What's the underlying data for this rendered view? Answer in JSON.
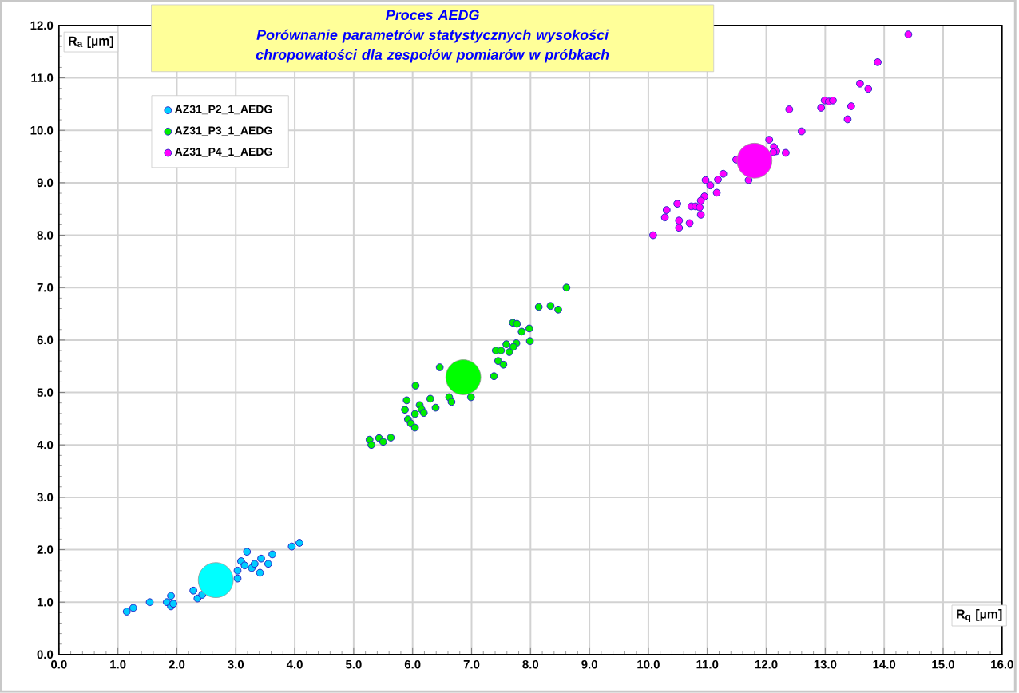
{
  "chart_data": {
    "type": "scatter",
    "title": "Proces AEDG",
    "subtitle": "Porównanie parametrów statystycznych wysokości chropowatości dla zespołów pomiarów w próbkach",
    "xlabel": "R$_{q}$ [µm]",
    "ylabel": "R$_{a}$ [µm]",
    "xlim": [
      0,
      16
    ],
    "ylim": [
      0,
      12
    ],
    "xticks": [
      {
        "value": 0,
        "label": "0.0"
      },
      {
        "value": 1,
        "label": "1.0"
      },
      {
        "value": 2,
        "label": "2.0"
      },
      {
        "value": 3,
        "label": "3.0"
      },
      {
        "value": 4,
        "label": "4.0"
      },
      {
        "value": 5,
        "label": "5.0"
      },
      {
        "value": 6,
        "label": "6.0"
      },
      {
        "value": 7,
        "label": "7.0"
      },
      {
        "value": 8,
        "label": "8.0"
      },
      {
        "value": 9,
        "label": "9.0"
      },
      {
        "value": 10,
        "label": "10.0"
      },
      {
        "value": 11,
        "label": "11.0"
      },
      {
        "value": 12,
        "label": "12.0"
      },
      {
        "value": 13,
        "label": "13.0"
      },
      {
        "value": 14,
        "label": "14.0"
      },
      {
        "value": 15,
        "label": "15.0"
      },
      {
        "value": 16,
        "label": "16.0"
      }
    ],
    "yticks": [
      {
        "value": 0,
        "label": "0.0"
      },
      {
        "value": 1,
        "label": "1.0"
      },
      {
        "value": 2,
        "label": "2.0"
      },
      {
        "value": 3,
        "label": "3.0"
      },
      {
        "value": 4,
        "label": "4.0"
      },
      {
        "value": 5,
        "label": "5.0"
      },
      {
        "value": 6,
        "label": "6.0"
      },
      {
        "value": 7,
        "label": "7.0"
      },
      {
        "value": 8,
        "label": "8.0"
      },
      {
        "value": 9,
        "label": "9.0"
      },
      {
        "value": 10,
        "label": "10.0"
      },
      {
        "value": 11,
        "label": "11.0"
      },
      {
        "value": 12,
        "label": "12.0"
      }
    ],
    "grid": true,
    "legend": "top left",
    "series": [
      {
        "name": "AZ31_P2_1_AEDG",
        "color": "#00ccff",
        "x": [
          1.15,
          1.26,
          1.54,
          1.83,
          1.9,
          1.9,
          1.94,
          2.28,
          2.35,
          2.43,
          3.03,
          3.03,
          3.09,
          3.19,
          3.15,
          3.27,
          3.32,
          3.43,
          3.41,
          3.55,
          3.62,
          3.95,
          4.08
        ],
        "values": [
          0.82,
          0.89,
          1.0,
          1.0,
          1.12,
          0.92,
          0.97,
          1.22,
          1.07,
          1.14,
          1.45,
          1.6,
          1.78,
          1.96,
          1.7,
          1.65,
          1.73,
          1.83,
          1.56,
          1.73,
          1.91,
          2.06,
          2.13
        ]
      },
      {
        "name": "AZ31_P3_1_AEDG",
        "color": "#00ee00",
        "x": [
          8.61,
          8.14,
          8.34,
          8.47,
          7.7,
          7.77,
          7.85,
          7.98,
          7.99,
          7.76,
          7.59,
          7.41,
          7.5,
          7.64,
          7.71,
          7.45,
          7.54,
          7.38,
          6.46,
          6.05,
          6.3,
          6.62,
          6.66,
          6.99,
          5.9,
          5.87,
          6.12,
          6.15,
          6.39,
          6.04,
          6.19,
          5.92,
          5.97,
          6.04,
          5.27,
          5.3,
          5.43,
          5.5,
          5.63
        ],
        "values": [
          7.0,
          6.63,
          6.65,
          6.58,
          6.33,
          6.31,
          6.16,
          6.22,
          5.98,
          5.94,
          5.92,
          5.8,
          5.8,
          5.77,
          5.87,
          5.6,
          5.53,
          5.31,
          5.48,
          5.13,
          4.88,
          4.91,
          4.82,
          4.91,
          4.85,
          4.67,
          4.76,
          4.68,
          4.71,
          4.59,
          4.61,
          4.49,
          4.41,
          4.33,
          4.1,
          4.0,
          4.13,
          4.06,
          4.14
        ]
      },
      {
        "name": "AZ31_P4_1_AEDG",
        "color": "#ff00ff",
        "x": [
          14.41,
          13.89,
          13.59,
          13.73,
          12.99,
          13.06,
          13.13,
          12.93,
          13.44,
          13.38,
          12.39,
          12.6,
          12.05,
          12.13,
          12.17,
          12.12,
          12.33,
          11.49,
          11.7,
          11.27,
          11.18,
          10.97,
          11.05,
          11.16,
          10.95,
          10.89,
          10.73,
          10.8,
          10.87,
          10.89,
          10.31,
          10.28,
          10.49,
          10.52,
          10.52,
          10.7,
          10.08
        ],
        "values": [
          11.83,
          11.3,
          10.89,
          10.79,
          10.57,
          10.55,
          10.57,
          10.43,
          10.46,
          10.21,
          10.4,
          9.98,
          9.82,
          9.68,
          9.6,
          9.58,
          9.57,
          9.44,
          9.05,
          9.17,
          9.06,
          9.05,
          8.95,
          8.81,
          8.74,
          8.66,
          8.55,
          8.55,
          8.53,
          8.39,
          8.48,
          8.34,
          8.6,
          8.28,
          8.14,
          8.23,
          8.0
        ]
      },
      {
        "type": "bubble",
        "color": "#00ffff",
        "x": [
          2.66
        ],
        "values": [
          1.42
        ],
        "sizes": [
          1
        ]
      },
      {
        "type": "bubble",
        "color": "#00ff00",
        "x": [
          6.86
        ],
        "values": [
          5.29
        ],
        "sizes": [
          1
        ]
      },
      {
        "type": "bubble",
        "color": "#ff00ff",
        "x": [
          11.8
        ],
        "values": [
          9.42
        ],
        "sizes": [
          1
        ]
      }
    ]
  }
}
